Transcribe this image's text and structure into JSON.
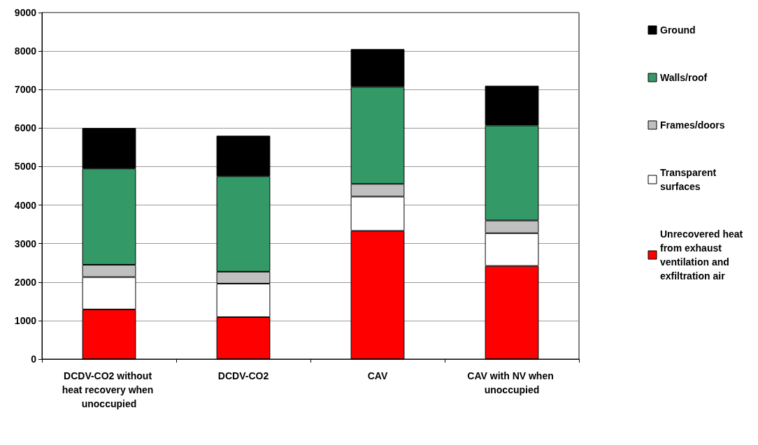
{
  "chart_data": {
    "type": "bar",
    "stacked": true,
    "categories": [
      "DCDV-CO2 without heat recovery when unoccupied",
      "DCDV-CO2",
      "CAV",
      "CAV with NV when unoccupied"
    ],
    "series": [
      {
        "name": "Unrecovered heat from exhaust ventilation and exfiltration air",
        "color": "#ff0000",
        "values": [
          1290,
          1090,
          3330,
          2420
        ]
      },
      {
        "name": "Transparent surfaces",
        "color": "#ffffff",
        "values": [
          840,
          870,
          890,
          850
        ]
      },
      {
        "name": "Frames/doors",
        "color": "#c0c0c0",
        "values": [
          320,
          310,
          330,
          330
        ]
      },
      {
        "name": "Walls/roof",
        "color": "#339966",
        "values": [
          2500,
          2480,
          2520,
          2470
        ]
      },
      {
        "name": "Ground",
        "color": "#000000",
        "values": [
          1050,
          1050,
          980,
          1030
        ]
      }
    ],
    "ylim": [
      0,
      9000
    ],
    "yticks": [
      0,
      1000,
      2000,
      3000,
      4000,
      5000,
      6000,
      7000,
      8000,
      9000
    ],
    "grid": "y",
    "legend": "right"
  }
}
